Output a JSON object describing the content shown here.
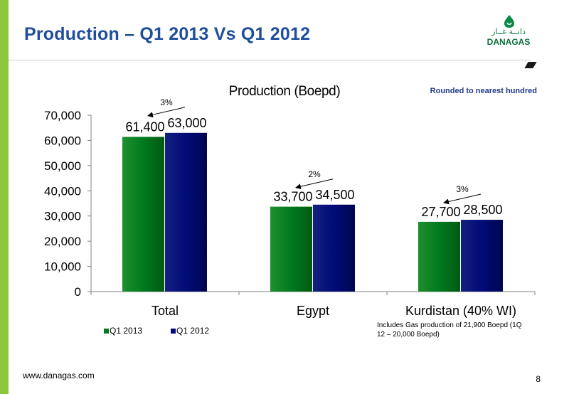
{
  "slide": {
    "title": "Production – Q1 2013 Vs Q1 2012",
    "logo_arabic": "دانــة غــاز",
    "logo_latin": "DANAGAS",
    "rounding_note": "Rounded to nearest hundred",
    "gas_note": "Includes Gas production of 21,900 Boepd (1Q 12 – 20,000 Boepd)",
    "footer_url": "www.danagas.com",
    "page_number": "8"
  },
  "chart_data": {
    "type": "bar",
    "title": "Production (Boepd)",
    "categories": [
      "Total",
      "Egypt",
      "Kurdistan (40% WI)"
    ],
    "series": [
      {
        "name": "Q1 2013",
        "values": [
          61400,
          33700,
          27700
        ],
        "color": "#007a1f"
      },
      {
        "name": "Q1 2012",
        "values": [
          63000,
          34500,
          28500
        ],
        "color": "#000b78"
      }
    ],
    "data_labels": [
      [
        "61,400",
        "33,700",
        "27,700"
      ],
      [
        "63,000",
        "34,500",
        "28,500"
      ]
    ],
    "change_labels": [
      "3%",
      "2%",
      "3%"
    ],
    "ylim": [
      0,
      70000
    ],
    "yticks": [
      0,
      10000,
      20000,
      30000,
      40000,
      50000,
      60000,
      70000
    ],
    "ytick_labels": [
      "0",
      "10,000",
      "20,000",
      "30,000",
      "40,000",
      "50,000",
      "60,000",
      "70,000"
    ],
    "grid": false,
    "legend_position": "bottom-left"
  }
}
